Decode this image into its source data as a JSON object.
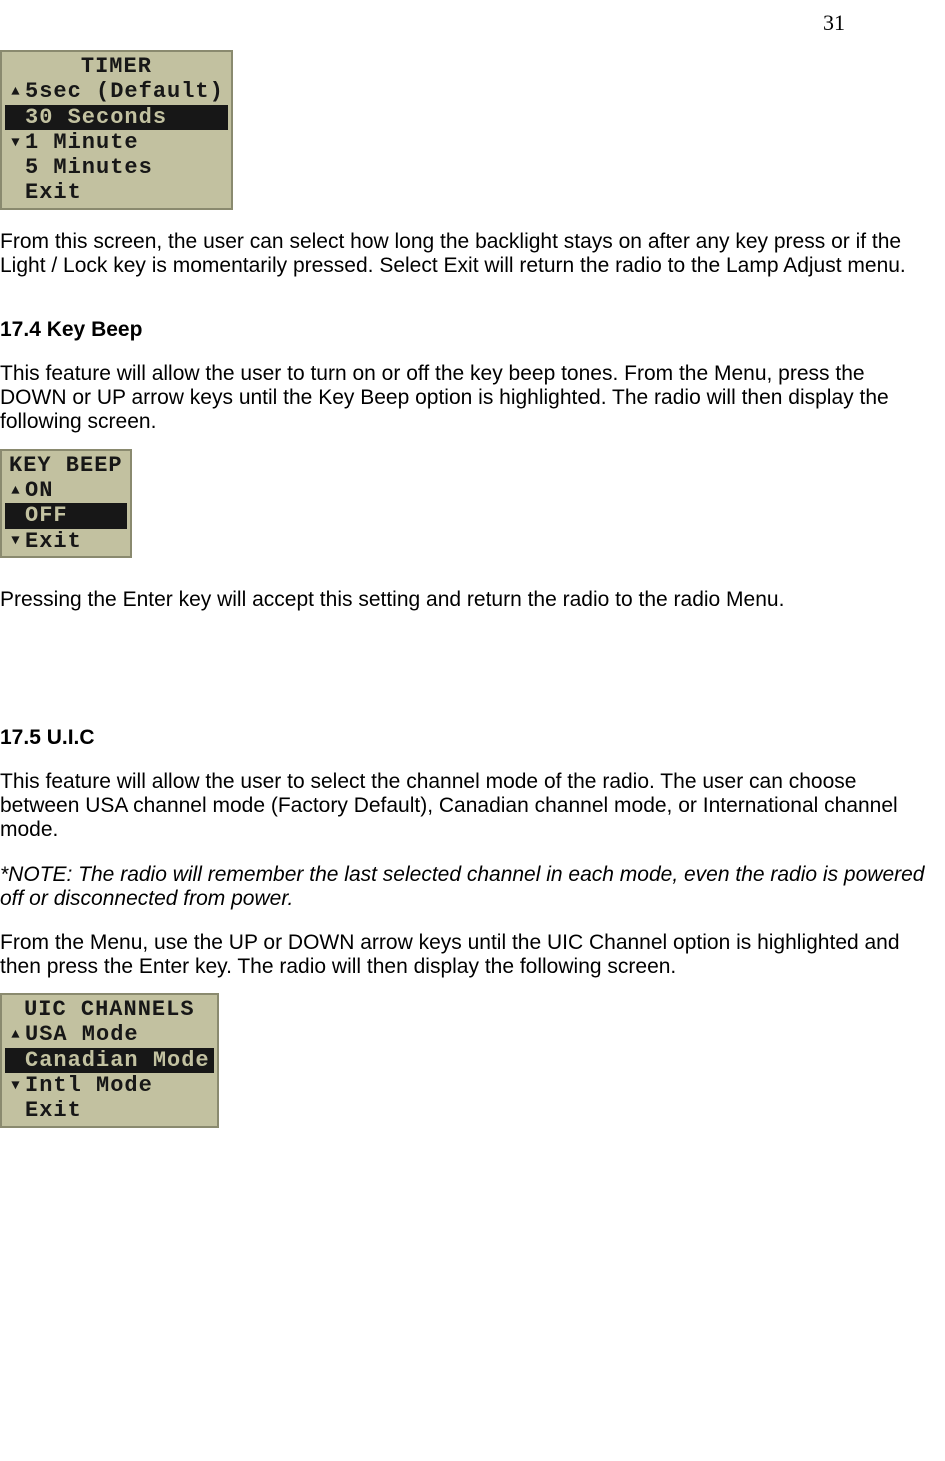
{
  "page_number": "31",
  "colors": {
    "lcd_bg": "#c2c1a0",
    "lcd_border": "#8a8a6f",
    "lcd_fg": "#171717",
    "lcd_selected_bg": "#171717",
    "lcd_selected_fg": "#c2c1a0",
    "page_bg": "#ffffff",
    "text": "#000000"
  },
  "typography": {
    "body_font": "Arial",
    "body_size_pt": 16,
    "lcd_font": "Courier New",
    "lcd_size_pt": 16,
    "page_number_font": "Times New Roman"
  },
  "lcd1": {
    "title": "TIMER",
    "rows": [
      {
        "text": "5sec (Default)",
        "selected": false,
        "arrow": "up"
      },
      {
        "text": "30 Seconds",
        "selected": true,
        "arrow": ""
      },
      {
        "text": "1 Minute",
        "selected": false,
        "arrow": "down"
      },
      {
        "text": "5 Minutes",
        "selected": false,
        "arrow": ""
      },
      {
        "text": "Exit",
        "selected": false,
        "arrow": ""
      }
    ]
  },
  "para1": "From this screen, the user can select how long the backlight stays on after any key press or if the Light / Lock key is momentarily pressed. Select Exit will return the radio to the Lamp Adjust menu.",
  "heading1": "17.4 Key Beep",
  "para2": "This feature will allow the user to turn on or off the key beep tones. From the Menu, press the DOWN or UP arrow keys until the Key Beep option is highlighted. The radio will then display the following screen.",
  "lcd2": {
    "title": "KEY BEEP",
    "rows": [
      {
        "text": "ON",
        "selected": false,
        "arrow": "up"
      },
      {
        "text": "OFF",
        "selected": true,
        "arrow": ""
      },
      {
        "text": "Exit",
        "selected": false,
        "arrow": "down"
      }
    ]
  },
  "para3": "Pressing the Enter key will accept this setting and return the radio to the radio Menu.",
  "heading2": "17.5 U.I.C",
  "para4": "This feature will allow the user to select the channel mode of the radio. The user can choose between USA channel mode (Factory Default), Canadian channel mode, or International channel mode.",
  "note1": "*NOTE: The radio will remember the last selected channel in each mode, even the radio is powered off or disconnected from power.",
  "para5": "From the Menu, use the UP or DOWN arrow keys until the UIC Channel option is highlighted and then press the Enter key. The radio will then display the following screen.",
  "lcd3": {
    "title": "UIC CHANNELS",
    "rows": [
      {
        "text": "USA Mode",
        "selected": false,
        "arrow": "up"
      },
      {
        "text": "Canadian Mode",
        "selected": true,
        "arrow": ""
      },
      {
        "text": "Intl Mode",
        "selected": false,
        "arrow": "down"
      },
      {
        "text": "Exit",
        "selected": false,
        "arrow": ""
      }
    ]
  }
}
